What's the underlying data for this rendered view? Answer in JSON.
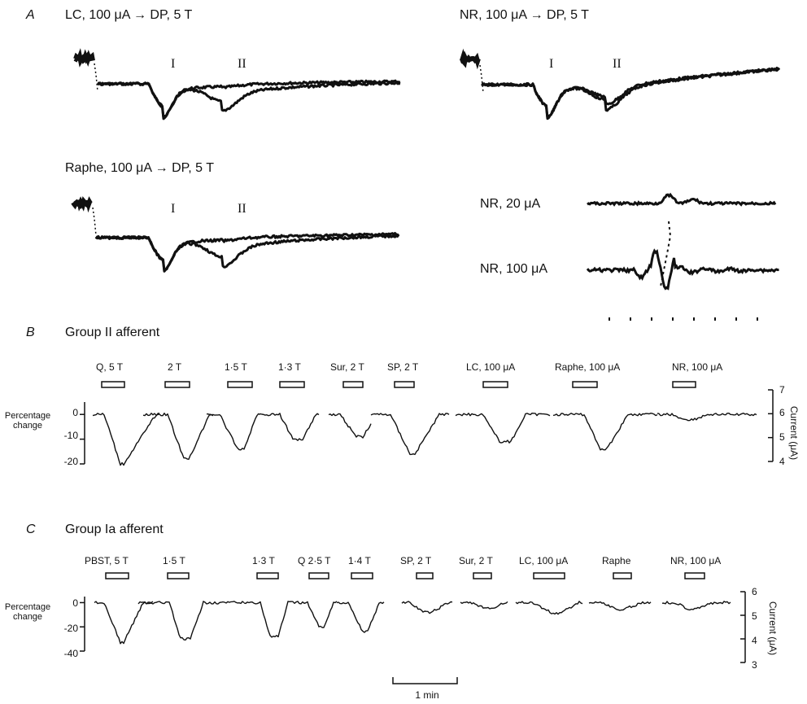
{
  "panelA": {
    "letter": "A",
    "lc_title": "LC, 100 μA → DP, 5 T",
    "nr_title": "NR, 100 μA → DP, 5 T",
    "raphe_title": "Raphe, 100 μA → DP, 5 T",
    "component_1": "I",
    "component_2": "II",
    "nr20_label": "NR, 20 μA",
    "nr100_label": "NR, 100 μA"
  },
  "panelB": {
    "letter": "B",
    "title": "Group II afferent",
    "ylabel_left_1": "Percentage",
    "ylabel_left_2": "change",
    "ylabel_right": "Current (μA)",
    "yticks_left": [
      "0",
      "-10",
      "-20"
    ],
    "yticks_right": [
      "7",
      "6",
      "5",
      "4"
    ],
    "stimuli": [
      "Q, 5 T",
      "2 T",
      "1·5 T",
      "1·3 T",
      "Sur, 2 T",
      "SP, 2 T",
      "LC, 100 μA",
      "Raphe, 100 μA",
      "NR, 100 μA"
    ]
  },
  "panelC": {
    "letter": "C",
    "title": "Group Ia afferent",
    "ylabel_left_1": "Percentage",
    "ylabel_left_2": "change",
    "ylabel_right": "Current (μA)",
    "yticks_left": [
      "0",
      "-20",
      "-40"
    ],
    "yticks_right": [
      "6",
      "5",
      "4",
      "3"
    ],
    "stimuli": [
      "PBST, 5 T",
      "1·5 T",
      "1·3 T",
      "Q 2·5 T",
      "1·4 T",
      "SP, 2 T",
      "Sur, 2 T",
      "LC, 100 μA",
      "Raphe",
      "NR, 100 μA"
    ]
  },
  "scale_bar": "1 min",
  "chart_data": [
    {
      "type": "line",
      "panel": "B",
      "title": "Group II afferent",
      "ylabel": "Percentage change",
      "ylabel_right": "Current (μA)",
      "ylim": [
        -20,
        5
      ],
      "ylim_right": [
        4,
        7
      ],
      "conditions": [
        "Q, 5 T",
        "2 T",
        "1·5 T",
        "1·3 T",
        "Sur, 2 T",
        "SP, 2 T",
        "LC, 100 μA",
        "Raphe, 100 μA",
        "NR, 100 μA"
      ],
      "peak_change_percent": [
        -20,
        -18,
        -14,
        -10,
        -9,
        -16,
        -11,
        -14,
        -2
      ]
    },
    {
      "type": "line",
      "panel": "C",
      "title": "Group Ia afferent",
      "ylabel": "Percentage change",
      "ylabel_right": "Current (μA)",
      "ylim": [
        -40,
        5
      ],
      "ylim_right": [
        3,
        6
      ],
      "conditions": [
        "PBST, 5 T",
        "1·5 T",
        "1·3 T",
        "Q 2·5 T",
        "1·4 T",
        "SP, 2 T",
        "Sur, 2 T",
        "LC, 100 μA",
        "Raphe",
        "NR, 100 μA"
      ],
      "peak_change_percent": [
        -33,
        -30,
        -28,
        -20,
        -24,
        -8,
        -5,
        -9,
        -6,
        -5
      ]
    }
  ]
}
